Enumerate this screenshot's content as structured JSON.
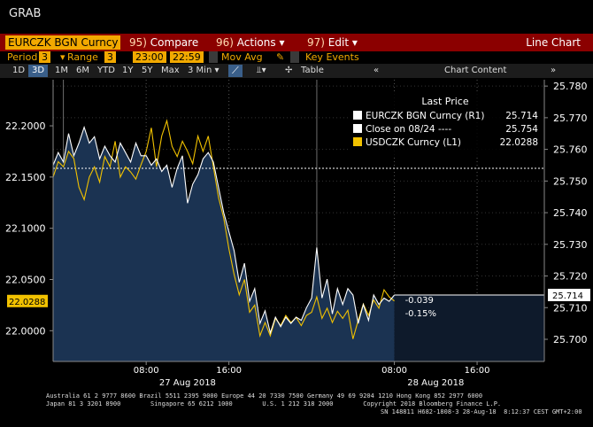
{
  "window_title": "GRAB",
  "toolbar": {
    "security": "EURCZK BGN Curncy",
    "compare": {
      "num": "95)",
      "label": "Compare"
    },
    "actions": {
      "num": "96)",
      "label": "Actions"
    },
    "edit": {
      "num": "97)",
      "label": "Edit"
    },
    "view_label": "Line Chart"
  },
  "settings": {
    "period_label": "Period",
    "period_value": "3",
    "range_label": "Range",
    "range_value": "3",
    "time_from": "23:00",
    "time_to": "22:59",
    "mov_avg": "Mov Avg",
    "key_events": "Key Events"
  },
  "range_buttons": [
    "1D",
    "3D",
    "1M",
    "6M",
    "YTD",
    "1Y",
    "5Y",
    "Max"
  ],
  "interval_button": "3 Min",
  "table_button": "Table",
  "chart_content_label": "Chart Content",
  "colors": {
    "eurczk": "#ffffff",
    "usdczk": "#f2c200",
    "fill": "#1b3352",
    "redbar": "#8b0000",
    "accent": "#f2a900"
  },
  "chart_data": {
    "type": "line",
    "legend": {
      "title": "Last Price",
      "entries": [
        {
          "name": "EURCZK BGN Curncy  (R1)",
          "value": "25.714",
          "color": "#ffffff"
        },
        {
          "name": "Close on 08/24  ----",
          "value": "25.754",
          "color": "#ffffff"
        },
        {
          "name": "USDCZK Curncy  (L1)",
          "value": "22.0288",
          "color": "#f2c200"
        }
      ]
    },
    "left_axis": {
      "ticks": [
        "22.2000",
        "22.1500",
        "22.1000",
        "22.0500",
        "22.0000"
      ],
      "tick_values": [
        22.2,
        22.15,
        22.1,
        22.05,
        22.0
      ],
      "range": [
        21.97,
        22.245
      ],
      "last_label": "22.0288"
    },
    "right_axis": {
      "ticks": [
        "25.780",
        "25.770",
        "25.760",
        "25.750",
        "25.740",
        "25.730",
        "25.720",
        "25.710",
        "25.700"
      ],
      "tick_values": [
        25.78,
        25.77,
        25.76,
        25.75,
        25.74,
        25.73,
        25.72,
        25.71,
        25.7
      ],
      "range": [
        25.693,
        25.782
      ],
      "last_label": "25.714"
    },
    "x_axis": {
      "range": [
        0,
        47.5
      ],
      "ticks": [
        {
          "t": 9,
          "label": "08:00"
        },
        {
          "t": 17,
          "label": "16:00"
        },
        {
          "t": 33,
          "label": "08:00"
        },
        {
          "t": 41,
          "label": "16:00"
        }
      ],
      "dates": [
        {
          "t": 13,
          "label": "27 Aug 2018"
        },
        {
          "t": 37,
          "label": "28 Aug 2018"
        }
      ],
      "session_breaks": [
        1,
        25.5
      ]
    },
    "close_level": 25.754,
    "change": {
      "abs": "-0.039",
      "pct": "-0.15%"
    },
    "series": [
      {
        "name": "EURCZK BGN Curncy",
        "axis": "right",
        "color": "#ffffff",
        "x": [
          0,
          0.5,
          1,
          1.5,
          2,
          2.5,
          3,
          3.5,
          4,
          4.5,
          5,
          5.5,
          6,
          6.5,
          7,
          7.5,
          8,
          8.5,
          9,
          9.5,
          10,
          10.5,
          11,
          11.5,
          12,
          12.5,
          13,
          13.5,
          14,
          14.5,
          15,
          15.5,
          16,
          16.5,
          17,
          17.5,
          18,
          18.5,
          19,
          19.5,
          20,
          20.5,
          21,
          21.5,
          22,
          22.5,
          23,
          23.5,
          24,
          24.5,
          25,
          25.5,
          26,
          26.5,
          27,
          27.5,
          28,
          28.5,
          29,
          29.5,
          30,
          30.5,
          31,
          31.5,
          32,
          32.5,
          33
        ],
        "y": [
          25.755,
          25.759,
          25.756,
          25.765,
          25.758,
          25.762,
          25.767,
          25.762,
          25.764,
          25.757,
          25.761,
          25.758,
          25.756,
          25.762,
          25.759,
          25.756,
          25.762,
          25.758,
          25.758,
          25.755,
          25.757,
          25.753,
          25.755,
          25.748,
          25.754,
          25.758,
          25.743,
          25.749,
          25.752,
          25.757,
          25.759,
          25.756,
          25.748,
          25.74,
          25.734,
          25.728,
          25.718,
          25.724,
          25.712,
          25.716,
          25.705,
          25.709,
          25.702,
          25.707,
          25.704,
          25.707,
          25.705,
          25.707,
          25.706,
          25.71,
          25.713,
          25.729,
          25.713,
          25.719,
          25.708,
          25.716,
          25.711,
          25.716,
          25.714,
          25.705,
          25.711,
          25.706,
          25.714,
          25.711,
          25.713,
          25.712,
          25.714
        ]
      },
      {
        "name": "USDCZK Curncy",
        "axis": "left",
        "color": "#f2c200",
        "x": [
          0,
          0.5,
          1,
          1.5,
          2,
          2.5,
          3,
          3.5,
          4,
          4.5,
          5,
          5.5,
          6,
          6.5,
          7,
          7.5,
          8,
          8.5,
          9,
          9.5,
          10,
          10.5,
          11,
          11.5,
          12,
          12.5,
          13,
          13.5,
          14,
          14.5,
          15,
          15.5,
          16,
          16.5,
          17,
          17.5,
          18,
          18.5,
          19,
          19.5,
          20,
          20.5,
          21,
          21.5,
          22,
          22.5,
          23,
          23.5,
          24,
          24.5,
          25,
          25.5,
          26,
          26.5,
          27,
          27.5,
          28,
          28.5,
          29,
          29.5,
          30,
          30.5,
          31,
          31.5,
          32,
          32.5,
          33
        ],
        "y": [
          22.15,
          22.165,
          22.16,
          22.175,
          22.168,
          22.14,
          22.128,
          22.15,
          22.16,
          22.145,
          22.17,
          22.16,
          22.185,
          22.15,
          22.16,
          22.155,
          22.148,
          22.162,
          22.175,
          22.198,
          22.16,
          22.19,
          22.205,
          22.18,
          22.17,
          22.185,
          22.175,
          22.163,
          22.19,
          22.175,
          22.19,
          22.16,
          22.13,
          22.11,
          22.08,
          22.055,
          22.035,
          22.05,
          22.018,
          22.025,
          21.995,
          22.008,
          21.995,
          22.012,
          22.005,
          22.015,
          22.008,
          22.013,
          22.005,
          22.015,
          22.018,
          22.033,
          22.012,
          22.022,
          22.008,
          22.019,
          22.012,
          22.02,
          21.992,
          22.01,
          22.026,
          22.015,
          22.03,
          22.022,
          22.04,
          22.033,
          22.029
        ]
      }
    ]
  },
  "footer": {
    "line1": "Australia 61 2 9777 8600 Brazil 5511 2395 9000 Europe 44 20 7330 7500 Germany 49 69 9204 1210 Hong Kong 852 2977 6000",
    "line2": "Japan 81 3 3201 8900        Singapore 65 6212 1000        U.S. 1 212 318 2000        Copyright 2018 Bloomberg Finance L.P.",
    "line3": "SN 148811 H682-1808-3 28-Aug-18  8:12:37 CEST GMT+2:00"
  }
}
